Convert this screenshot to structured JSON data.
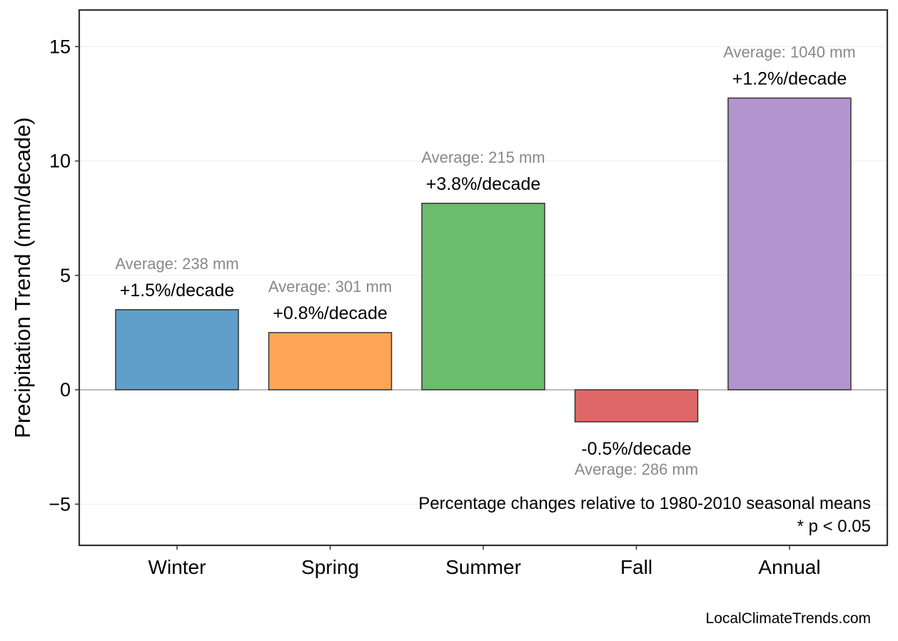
{
  "chart_data": {
    "type": "bar",
    "title": "",
    "xlabel": "",
    "ylabel": "Precipitation Trend (mm/decade)",
    "ylim": [
      -6.8,
      16.6
    ],
    "yticks": [
      -5,
      0,
      5,
      10,
      15
    ],
    "ytick_labels": [
      "−5",
      "0",
      "5",
      "10",
      "15"
    ],
    "grid": true,
    "categories": [
      "Winter",
      "Spring",
      "Summer",
      "Fall",
      "Annual"
    ],
    "values": [
      3.5,
      2.5,
      8.15,
      -1.4,
      12.75
    ],
    "colors": [
      "#5f9fca",
      "#ffa555",
      "#6abd6a",
      "#e06767",
      "#b394cf"
    ],
    "pct_labels": [
      "+1.5%/decade",
      "+0.8%/decade",
      "+3.8%/decade",
      "-0.5%/decade",
      "+1.2%/decade"
    ],
    "avg_labels": [
      "Average: 238 mm",
      "Average: 301 mm",
      "Average: 215 mm",
      "Average: 286 mm",
      "Average: 1040 mm"
    ],
    "annotations": [
      "Percentage changes relative to 1980-2010 seasonal means",
      "* p < 0.05"
    ],
    "source": "LocalClimateTrends.com"
  }
}
